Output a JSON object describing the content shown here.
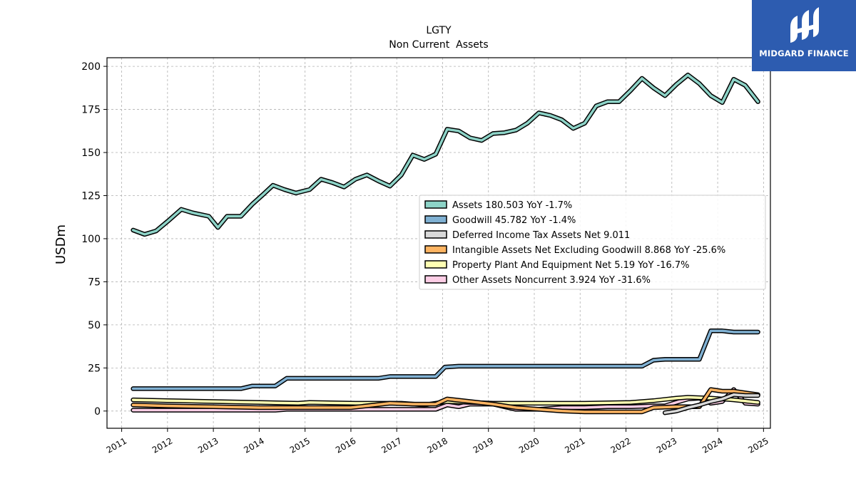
{
  "chart_data": {
    "type": "line",
    "title": "LGTY",
    "subtitle": "Non Current  Assets",
    "ylabel": "USDm",
    "xlabel": "",
    "xlim": [
      2010.68,
      2025.15
    ],
    "ylim": [
      -10,
      205
    ],
    "yticks": [
      0,
      25,
      50,
      75,
      100,
      125,
      150,
      175,
      200
    ],
    "xticks": [
      "2011",
      "2012",
      "2013",
      "2014",
      "2015",
      "2016",
      "2017",
      "2018",
      "2019",
      "2020",
      "2021",
      "2022",
      "2023",
      "2024",
      "2025"
    ],
    "grid": true,
    "legend_position": "center-right",
    "series": [
      {
        "name": "Assets",
        "legend": "Assets  180.503 YoY -1.7%",
        "color": "#8dd3c7",
        "points": [
          [
            2011.25,
            105
          ],
          [
            2011.5,
            102.5
          ],
          [
            2011.75,
            104.5
          ],
          [
            2012.0,
            110
          ],
          [
            2012.3,
            117
          ],
          [
            2012.55,
            115
          ],
          [
            2012.9,
            113
          ],
          [
            2013.1,
            106.5
          ],
          [
            2013.3,
            113
          ],
          [
            2013.6,
            113
          ],
          [
            2013.85,
            120
          ],
          [
            2014.1,
            126
          ],
          [
            2014.3,
            131
          ],
          [
            2014.55,
            128.5
          ],
          [
            2014.8,
            126.5
          ],
          [
            2015.1,
            128.5
          ],
          [
            2015.35,
            134.5
          ],
          [
            2015.6,
            132.5
          ],
          [
            2015.85,
            130
          ],
          [
            2016.1,
            134.5
          ],
          [
            2016.35,
            137
          ],
          [
            2016.6,
            133.5
          ],
          [
            2016.85,
            130.5
          ],
          [
            2017.1,
            137
          ],
          [
            2017.35,
            148.5
          ],
          [
            2017.6,
            146
          ],
          [
            2017.85,
            149
          ],
          [
            2018.1,
            163.5
          ],
          [
            2018.35,
            162.5
          ],
          [
            2018.6,
            158.5
          ],
          [
            2018.85,
            157
          ],
          [
            2019.1,
            161
          ],
          [
            2019.35,
            161.5
          ],
          [
            2019.6,
            163
          ],
          [
            2019.85,
            167
          ],
          [
            2020.1,
            173
          ],
          [
            2020.35,
            171.5
          ],
          [
            2020.6,
            169
          ],
          [
            2020.85,
            164
          ],
          [
            2021.1,
            167
          ],
          [
            2021.35,
            177
          ],
          [
            2021.6,
            179.5
          ],
          [
            2021.85,
            179.5
          ],
          [
            2022.1,
            186
          ],
          [
            2022.35,
            193
          ],
          [
            2022.6,
            187.5
          ],
          [
            2022.85,
            183
          ],
          [
            2023.1,
            189.5
          ],
          [
            2023.35,
            195
          ],
          [
            2023.6,
            190
          ],
          [
            2023.85,
            183
          ],
          [
            2024.1,
            179
          ],
          [
            2024.35,
            192.5
          ],
          [
            2024.6,
            189
          ],
          [
            2024.88,
            179.5
          ]
        ]
      },
      {
        "name": "Goodwill",
        "legend": "Goodwill  45.782 YoY -1.4%",
        "color": "#80b1d3",
        "points": [
          [
            2011.25,
            13
          ],
          [
            2013.6,
            13
          ],
          [
            2013.85,
            14.5
          ],
          [
            2014.35,
            14.5
          ],
          [
            2014.6,
            19
          ],
          [
            2016.6,
            19
          ],
          [
            2016.85,
            20
          ],
          [
            2017.85,
            20
          ],
          [
            2018.05,
            25.5
          ],
          [
            2018.35,
            26
          ],
          [
            2022.35,
            26
          ],
          [
            2022.6,
            29.5
          ],
          [
            2022.85,
            30
          ],
          [
            2023.6,
            30
          ],
          [
            2023.85,
            46.5
          ],
          [
            2024.1,
            46.5
          ],
          [
            2024.35,
            45.8
          ],
          [
            2024.88,
            45.8
          ]
        ]
      },
      {
        "name": "Deferred Income Tax Assets Net",
        "legend": "Deferred Income Tax Assets Net  9.011",
        "color": "#d9d9d9",
        "points": [
          [
            2022.85,
            -1
          ],
          [
            2023.1,
            0
          ],
          [
            2023.35,
            2
          ],
          [
            2023.6,
            3.5
          ],
          [
            2023.85,
            5.5
          ],
          [
            2024.1,
            7
          ],
          [
            2024.35,
            9.5
          ],
          [
            2024.6,
            9
          ],
          [
            2024.88,
            9
          ]
        ]
      },
      {
        "name": "Intangible Assets Net Excluding Goodwill",
        "legend": "Intangible Assets Net Excluding Goodwill  8.868 YoY -25.6%",
        "color": "#fdb462",
        "points": [
          [
            2011.25,
            3.5
          ],
          [
            2012.0,
            3
          ],
          [
            2013.0,
            2.5
          ],
          [
            2014.0,
            2
          ],
          [
            2015.0,
            2
          ],
          [
            2016.0,
            2
          ],
          [
            2016.85,
            4.5
          ],
          [
            2017.35,
            4
          ],
          [
            2017.85,
            4
          ],
          [
            2018.1,
            7
          ],
          [
            2018.6,
            5.5
          ],
          [
            2019.1,
            4
          ],
          [
            2019.6,
            2
          ],
          [
            2020.1,
            1
          ],
          [
            2020.6,
            0
          ],
          [
            2021.1,
            -0.5
          ],
          [
            2021.6,
            -0.5
          ],
          [
            2022.1,
            -0.5
          ],
          [
            2022.35,
            -0.5
          ],
          [
            2022.6,
            2
          ],
          [
            2023.1,
            2.5
          ],
          [
            2023.6,
            2.5
          ],
          [
            2023.85,
            12.5
          ],
          [
            2024.1,
            11.5
          ],
          [
            2024.35,
            11.5
          ],
          [
            2024.6,
            10.5
          ],
          [
            2024.88,
            9.5
          ]
        ]
      },
      {
        "name": "Property Plant And Equipment Net",
        "legend": "Property Plant And Equipment Net  5.19 YoY -16.7%",
        "color": "#ffffb3",
        "points": [
          [
            2011.25,
            6.5
          ],
          [
            2012.0,
            6
          ],
          [
            2013.0,
            5.5
          ],
          [
            2014.0,
            5
          ],
          [
            2014.85,
            4.5
          ],
          [
            2015.1,
            5
          ],
          [
            2016.1,
            4.5
          ],
          [
            2017.1,
            4.5
          ],
          [
            2017.6,
            3.5
          ],
          [
            2018.1,
            5.5
          ],
          [
            2019.1,
            4.5
          ],
          [
            2020.1,
            4.5
          ],
          [
            2021.1,
            4.5
          ],
          [
            2022.1,
            5
          ],
          [
            2022.6,
            6
          ],
          [
            2023.1,
            7.5
          ],
          [
            2023.35,
            8
          ],
          [
            2023.85,
            7.5
          ],
          [
            2024.35,
            6.5
          ],
          [
            2024.88,
            5
          ]
        ]
      },
      {
        "name": "Other Assets Noncurrent",
        "legend": "Other Assets Noncurrent  3.924 YoY -31.6%",
        "color": "#fccde5",
        "points": [
          [
            2011.25,
            0.5
          ],
          [
            2012.0,
            0.5
          ],
          [
            2013.0,
            0.5
          ],
          [
            2014.0,
            0.5
          ],
          [
            2014.35,
            0.5
          ],
          [
            2014.6,
            1
          ],
          [
            2015.35,
            1
          ],
          [
            2016.1,
            1
          ],
          [
            2016.6,
            1
          ],
          [
            2017.1,
            1
          ],
          [
            2017.85,
            1
          ],
          [
            2018.1,
            3.5
          ],
          [
            2018.35,
            2.5
          ],
          [
            2018.6,
            4
          ],
          [
            2018.85,
            4
          ],
          [
            2019.1,
            4
          ],
          [
            2019.35,
            2.5
          ],
          [
            2019.6,
            1
          ],
          [
            2019.85,
            1
          ],
          [
            2020.1,
            1
          ],
          [
            2020.6,
            2
          ],
          [
            2021.1,
            2
          ],
          [
            2021.6,
            2.5
          ],
          [
            2022.1,
            2.5
          ],
          [
            2022.6,
            3
          ],
          [
            2022.85,
            3
          ],
          [
            2023.1,
            5
          ],
          [
            2023.35,
            7
          ],
          [
            2023.6,
            7.5
          ],
          [
            2023.85,
            4.5
          ],
          [
            2024.1,
            5.5
          ],
          [
            2024.35,
            12.5
          ],
          [
            2024.6,
            4.5
          ],
          [
            2024.88,
            4
          ]
        ]
      }
    ]
  },
  "logo": {
    "text": "MIDGARD FINANCE",
    "color": "#2d5cb0"
  }
}
